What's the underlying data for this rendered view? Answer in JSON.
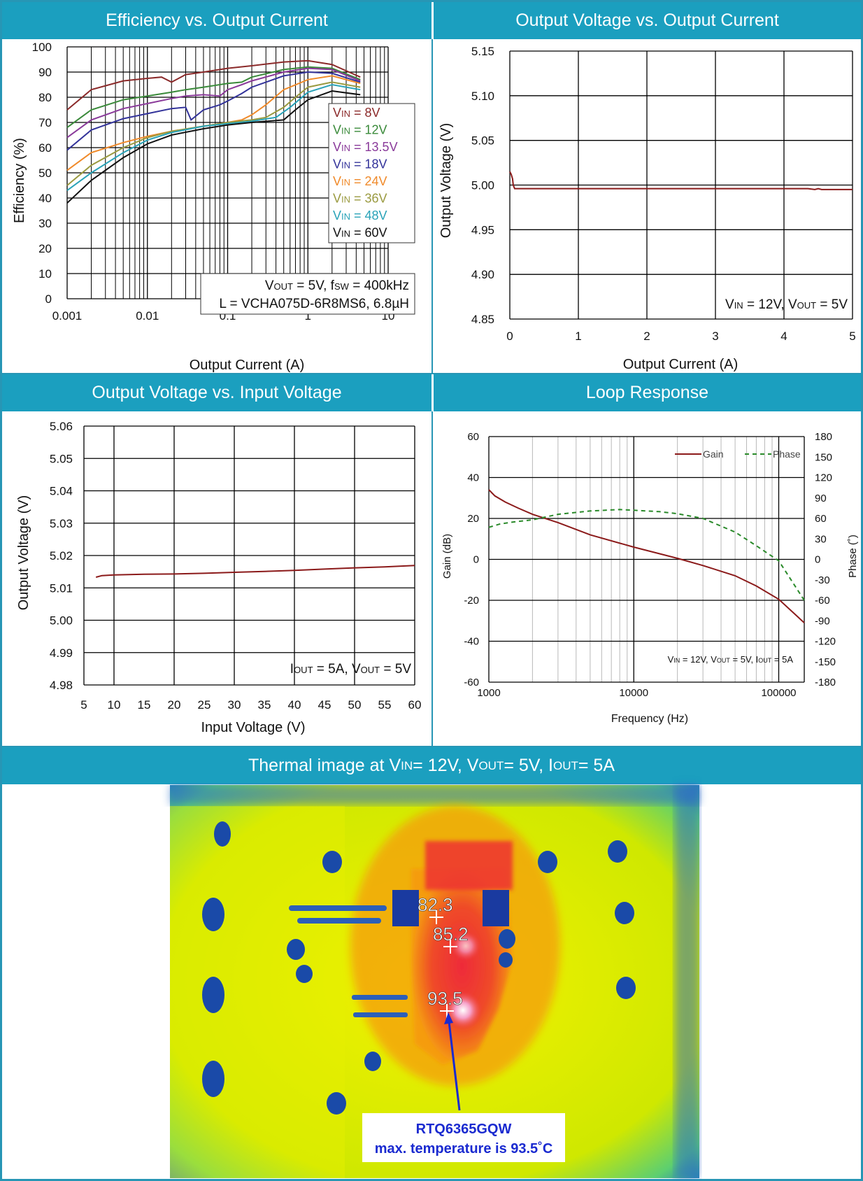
{
  "headers": {
    "h1": "Efficiency vs. Output Current",
    "h2": "Output Voltage vs. Output Current",
    "h3": "Output Voltage vs. Input Voltage",
    "h4": "Loop Response",
    "h5_pre": "Thermal image at V",
    "h5_sub1": "IN",
    "h5_mid1": " = 12V, V",
    "h5_sub2": "OUT",
    "h5_mid2": " = 5V, I",
    "h5_sub3": "OUT",
    "h5_post": " = 5A"
  },
  "chart_data": [
    {
      "type": "line",
      "title": "Efficiency vs. Output Current",
      "xlabel": "Output Current (A)",
      "ylabel": "Efficiency (%)",
      "xscale": "log",
      "xlim": [
        0.001,
        10
      ],
      "ylim": [
        0,
        100
      ],
      "xticks": [
        "0.001",
        "0.01",
        "0.1",
        "1",
        "10"
      ],
      "yticks": [
        "0",
        "10",
        "20",
        "30",
        "40",
        "50",
        "60",
        "70",
        "80",
        "90",
        "100"
      ],
      "grid": true,
      "legend_position": "right",
      "annotation": [
        "V",
        "OUT",
        " = 5V, f",
        "SW",
        " = 400kHz",
        "L = VCHA075D-6R8MS6, 6.8µH"
      ],
      "series": [
        {
          "name": "VIN = 8V",
          "sub": "IN",
          "label_pre": "V",
          "label_post": " = 8V",
          "color": "#8b2a2a",
          "x": [
            0.001,
            0.002,
            0.005,
            0.01,
            0.015,
            0.02,
            0.03,
            0.05,
            0.1,
            0.2,
            0.5,
            1,
            2,
            4.5
          ],
          "y": [
            75,
            83,
            86.5,
            87.5,
            88,
            86,
            89,
            90,
            91.5,
            92.5,
            94,
            94.5,
            93,
            88
          ]
        },
        {
          "name": "VIN = 12V",
          "sub": "IN",
          "label_pre": "V",
          "label_post": " = 12V",
          "color": "#3a8a3a",
          "x": [
            0.001,
            0.002,
            0.005,
            0.01,
            0.02,
            0.03,
            0.05,
            0.1,
            0.15,
            0.2,
            0.5,
            1,
            2,
            4.5
          ],
          "y": [
            68,
            75,
            79,
            80.5,
            82,
            83,
            84,
            85.5,
            86,
            88,
            91,
            92,
            91.5,
            87
          ]
        },
        {
          "name": "VIN = 13.5V",
          "sub": "IN",
          "label_pre": "V",
          "label_post": " = 13.5V",
          "color": "#8a3a9a",
          "x": [
            0.001,
            0.002,
            0.005,
            0.01,
            0.02,
            0.03,
            0.05,
            0.08,
            0.1,
            0.15,
            0.2,
            0.5,
            1,
            2,
            4.5
          ],
          "y": [
            64,
            71,
            75.5,
            77.5,
            79.5,
            80.5,
            81,
            80.5,
            83,
            85,
            86.5,
            90,
            91.5,
            91,
            86.5
          ]
        },
        {
          "name": "VIN = 18V",
          "sub": "IN",
          "label_pre": "V",
          "label_post": " = 18V",
          "color": "#33339a",
          "x": [
            0.001,
            0.002,
            0.005,
            0.01,
            0.02,
            0.03,
            0.035,
            0.05,
            0.08,
            0.1,
            0.15,
            0.2,
            0.5,
            1,
            2,
            4.5
          ],
          "y": [
            59,
            67,
            71.5,
            73.5,
            75.5,
            76,
            71,
            75,
            77,
            78.5,
            81.5,
            84,
            88.5,
            90,
            89.5,
            86
          ]
        },
        {
          "name": "VIN = 24V",
          "sub": "IN",
          "label_pre": "V",
          "label_post": " = 24V",
          "color": "#f08a2a",
          "x": [
            0.001,
            0.002,
            0.005,
            0.01,
            0.02,
            0.05,
            0.1,
            0.15,
            0.2,
            0.3,
            0.5,
            1,
            2,
            4.5
          ],
          "y": [
            51,
            58,
            62,
            64.5,
            66.5,
            68.5,
            70,
            71,
            73,
            77,
            83,
            87,
            88.5,
            85.5
          ]
        },
        {
          "name": "VIN = 36V",
          "sub": "IN",
          "label_pre": "V",
          "label_post": " = 36V",
          "color": "#9a9a40",
          "x": [
            0.001,
            0.002,
            0.005,
            0.01,
            0.02,
            0.05,
            0.1,
            0.2,
            0.3,
            0.5,
            0.7,
            1,
            2,
            4.5
          ],
          "y": [
            45,
            53,
            60,
            64,
            66.5,
            68.5,
            70,
            71,
            72,
            76,
            80,
            84,
            86,
            84
          ]
        },
        {
          "name": "VIN = 48V",
          "sub": "IN",
          "label_pre": "V",
          "label_post": " = 48V",
          "color": "#2aa3b8",
          "x": [
            0.001,
            0.002,
            0.005,
            0.01,
            0.02,
            0.05,
            0.1,
            0.2,
            0.4,
            0.6,
            1,
            2,
            4.5
          ],
          "y": [
            43,
            50,
            58,
            63,
            66,
            68.5,
            69.5,
            70.5,
            72,
            76,
            82,
            85,
            83
          ]
        },
        {
          "name": "VIN = 60V",
          "sub": "IN",
          "label_pre": "V",
          "label_post": " = 60V",
          "color": "#111111",
          "x": [
            0.001,
            0.002,
            0.005,
            0.01,
            0.02,
            0.05,
            0.1,
            0.2,
            0.5,
            0.7,
            1,
            2,
            4.5
          ],
          "y": [
            38,
            47,
            56,
            61.5,
            65,
            67.5,
            69,
            70,
            71,
            75,
            79,
            82.5,
            81
          ]
        }
      ]
    },
    {
      "type": "line",
      "title": "Output Voltage vs. Output Current",
      "xlabel": "Output Current (A)",
      "ylabel": "Output Voltage (V)",
      "xlim": [
        0,
        5
      ],
      "ylim": [
        4.85,
        5.15
      ],
      "xticks": [
        "0",
        "1",
        "2",
        "3",
        "4",
        "5"
      ],
      "yticks": [
        "4.85",
        "4.90",
        "4.95",
        "5.00",
        "5.05",
        "5.10",
        "5.15"
      ],
      "grid": true,
      "annotation": [
        "V",
        "IN",
        " = 12V, V",
        "OUT",
        " = 5V"
      ],
      "series": [
        {
          "color": "#8b1a1a",
          "x": [
            0,
            0.02,
            0.04,
            0.05,
            0.07,
            0.1,
            1,
            2,
            3,
            4,
            4.35,
            4.45,
            4.5,
            4.55,
            5
          ],
          "y": [
            5.015,
            5.012,
            5.007,
            5.0,
            4.996,
            4.996,
            4.996,
            4.996,
            4.996,
            4.996,
            4.996,
            4.995,
            4.996,
            4.995,
            4.995
          ]
        }
      ]
    },
    {
      "type": "line",
      "title": "Output Voltage vs. Input Voltage",
      "xlabel": "Input Voltage (V)",
      "ylabel": "Output Voltage (V)",
      "xlim": [
        5,
        60
      ],
      "ylim": [
        4.98,
        5.06
      ],
      "xticks": [
        "5",
        "10",
        "15",
        "20",
        "25",
        "30",
        "35",
        "40",
        "45",
        "50",
        "55",
        "60"
      ],
      "yticks": [
        "4.98",
        "4.99",
        "5.00",
        "5.01",
        "5.02",
        "5.03",
        "5.04",
        "5.05",
        "5.06"
      ],
      "grid": true,
      "annotation": [
        "I",
        "OUT",
        " = 5A, V",
        "OUT",
        " = 5V"
      ],
      "series": [
        {
          "color": "#8b1a1a",
          "x": [
            7,
            8,
            10,
            15,
            20,
            25,
            30,
            35,
            40,
            45,
            50,
            55,
            60
          ],
          "y": [
            5.0133,
            5.0138,
            5.014,
            5.0142,
            5.0143,
            5.0145,
            5.0148,
            5.0151,
            5.0154,
            5.0158,
            5.0162,
            5.0165,
            5.0169
          ]
        }
      ]
    },
    {
      "type": "line",
      "title": "Loop Response",
      "xlabel": "Frequency (Hz)",
      "ylabel": "Gain (dB)",
      "y2label": "Phase (˚)",
      "xscale": "log",
      "xlim": [
        1000,
        150000
      ],
      "ylim": [
        -60,
        60
      ],
      "y2lim": [
        -180,
        180
      ],
      "xticks": [
        "1000",
        "10000",
        "100000"
      ],
      "yticks": [
        "-60",
        "-40",
        "-20",
        "0",
        "20",
        "40",
        "60"
      ],
      "y2ticks": [
        "-180",
        "-150",
        "-120",
        "-90",
        "-60",
        "-30",
        "0",
        "30",
        "60",
        "90",
        "120",
        "150",
        "180"
      ],
      "grid": true,
      "legend_position": "top-right",
      "annotation": [
        "V",
        "IN",
        " = 12V, V",
        "OUT",
        " = 5V, I",
        "OUT",
        " = 5A"
      ],
      "series": [
        {
          "name": "Gain",
          "axis": "left",
          "color": "#8b1a1a",
          "dash": "none",
          "x": [
            1000,
            1100,
            1300,
            1600,
            2000,
            3000,
            5000,
            10000,
            20000,
            30000,
            50000,
            70000,
            100000,
            150000
          ],
          "y": [
            34,
            31,
            28,
            25,
            22,
            18,
            12,
            6,
            0.5,
            -3,
            -8,
            -13,
            -19.5,
            -31
          ]
        },
        {
          "name": "Phase",
          "axis": "right",
          "color": "#2a8a2a",
          "dash": "6 5",
          "x": [
            1000,
            1200,
            1500,
            2000,
            3000,
            5000,
            8000,
            10000,
            15000,
            20000,
            30000,
            50000,
            70000,
            100000,
            150000
          ],
          "y": [
            47,
            52,
            55,
            58,
            66,
            71,
            73,
            72,
            70,
            67,
            60,
            40,
            20,
            -2,
            -60
          ]
        }
      ]
    }
  ],
  "thermal": {
    "labels": [
      "82.3",
      "85.2",
      "93.5"
    ],
    "callout_line1": "RTQ6365GQW",
    "callout_line2": "max. temperature is 93.5˚C"
  }
}
